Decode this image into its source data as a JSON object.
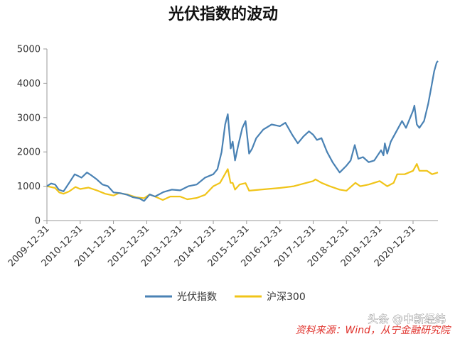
{
  "chart_data": {
    "type": "line",
    "title": "光伏指数的波动",
    "ylim": [
      0,
      5000
    ],
    "yticks": [
      "0",
      "1000",
      "2000",
      "3000",
      "4000",
      "5000"
    ],
    "xlim": [
      "2009-12-31",
      "2021-09-30"
    ],
    "xticks": [
      "2009-12-31",
      "2010-12-31",
      "2011-12-31",
      "2012-12-31",
      "2013-12-31",
      "2014-12-31",
      "2015-12-31",
      "2016-12-31",
      "2017-12-31",
      "2018-12-31",
      "2019-12-31",
      "2020-12-31"
    ],
    "grid": false,
    "legend_position": "bottom",
    "series": [
      {
        "name": "光伏指数",
        "color": "#4a82b4",
        "points": [
          [
            "2009-12-31",
            1000
          ],
          [
            "2010-02-15",
            1080
          ],
          [
            "2010-03-31",
            1050
          ],
          [
            "2010-05-10",
            900
          ],
          [
            "2010-07-01",
            850
          ],
          [
            "2010-09-01",
            1100
          ],
          [
            "2010-11-01",
            1350
          ],
          [
            "2011-01-15",
            1250
          ],
          [
            "2011-03-15",
            1400
          ],
          [
            "2011-05-01",
            1320
          ],
          [
            "2011-07-01",
            1200
          ],
          [
            "2011-09-01",
            1050
          ],
          [
            "2011-11-01",
            1000
          ],
          [
            "2012-01-01",
            820
          ],
          [
            "2012-03-15",
            800
          ],
          [
            "2012-06-01",
            750
          ],
          [
            "2012-08-01",
            680
          ],
          [
            "2012-10-15",
            640
          ],
          [
            "2012-12-01",
            570
          ],
          [
            "2013-02-01",
            760
          ],
          [
            "2013-04-01",
            700
          ],
          [
            "2013-07-01",
            830
          ],
          [
            "2013-10-01",
            900
          ],
          [
            "2014-01-01",
            880
          ],
          [
            "2014-04-01",
            1000
          ],
          [
            "2014-07-01",
            1050
          ],
          [
            "2014-10-01",
            1250
          ],
          [
            "2014-12-31",
            1350
          ],
          [
            "2015-02-15",
            1500
          ],
          [
            "2015-04-01",
            2000
          ],
          [
            "2015-05-10",
            2800
          ],
          [
            "2015-06-08",
            3100
          ],
          [
            "2015-07-10",
            2100
          ],
          [
            "2015-08-01",
            2300
          ],
          [
            "2015-08-26",
            1750
          ],
          [
            "2015-10-01",
            2200
          ],
          [
            "2015-11-15",
            2700
          ],
          [
            "2015-12-20",
            2900
          ],
          [
            "2016-01-28",
            1950
          ],
          [
            "2016-03-01",
            2100
          ],
          [
            "2016-04-15",
            2400
          ],
          [
            "2016-07-01",
            2650
          ],
          [
            "2016-10-01",
            2800
          ],
          [
            "2016-12-31",
            2750
          ],
          [
            "2017-03-01",
            2850
          ],
          [
            "2017-05-15",
            2500
          ],
          [
            "2017-07-15",
            2250
          ],
          [
            "2017-09-15",
            2450
          ],
          [
            "2017-11-15",
            2600
          ],
          [
            "2017-12-31",
            2500
          ],
          [
            "2018-02-10",
            2350
          ],
          [
            "2018-04-01",
            2400
          ],
          [
            "2018-06-01",
            2000
          ],
          [
            "2018-08-01",
            1700
          ],
          [
            "2018-10-18",
            1400
          ],
          [
            "2018-12-31",
            1600
          ],
          [
            "2019-02-15",
            1750
          ],
          [
            "2019-04-01",
            2200
          ],
          [
            "2019-05-10",
            1800
          ],
          [
            "2019-07-01",
            1850
          ],
          [
            "2019-09-01",
            1700
          ],
          [
            "2019-11-01",
            1750
          ],
          [
            "2020-01-15",
            2050
          ],
          [
            "2020-02-10",
            1900
          ],
          [
            "2020-02-25",
            2250
          ],
          [
            "2020-03-23",
            1950
          ],
          [
            "2020-05-01",
            2300
          ],
          [
            "2020-07-01",
            2600
          ],
          [
            "2020-09-01",
            2900
          ],
          [
            "2020-10-15",
            2700
          ],
          [
            "2020-11-15",
            2900
          ],
          [
            "2020-12-31",
            3200
          ],
          [
            "2021-01-15",
            3350
          ],
          [
            "2021-02-10",
            2800
          ],
          [
            "2021-03-10",
            2700
          ],
          [
            "2021-05-01",
            2900
          ],
          [
            "2021-06-15",
            3400
          ],
          [
            "2021-07-20",
            3900
          ],
          [
            "2021-08-20",
            4350
          ],
          [
            "2021-09-15",
            4600
          ],
          [
            "2021-09-30",
            4650
          ]
        ]
      },
      {
        "name": "沪深300",
        "color": "#f0c419",
        "points": [
          [
            "2009-12-31",
            1000
          ],
          [
            "2010-03-31",
            950
          ],
          [
            "2010-05-15",
            820
          ],
          [
            "2010-07-01",
            780
          ],
          [
            "2010-09-01",
            850
          ],
          [
            "2010-11-10",
            980
          ],
          [
            "2010-12-31",
            920
          ],
          [
            "2011-04-01",
            960
          ],
          [
            "2011-07-01",
            880
          ],
          [
            "2011-10-01",
            780
          ],
          [
            "2011-12-31",
            730
          ],
          [
            "2012-03-01",
            800
          ],
          [
            "2012-06-01",
            760
          ],
          [
            "2012-09-01",
            680
          ],
          [
            "2012-12-01",
            650
          ],
          [
            "2013-02-01",
            760
          ],
          [
            "2013-04-01",
            700
          ],
          [
            "2013-06-25",
            600
          ],
          [
            "2013-09-15",
            700
          ],
          [
            "2013-12-31",
            700
          ],
          [
            "2014-03-20",
            620
          ],
          [
            "2014-07-01",
            660
          ],
          [
            "2014-10-01",
            750
          ],
          [
            "2014-12-31",
            1000
          ],
          [
            "2015-03-15",
            1100
          ],
          [
            "2015-06-08",
            1500
          ],
          [
            "2015-07-08",
            1100
          ],
          [
            "2015-08-01",
            1100
          ],
          [
            "2015-08-26",
            900
          ],
          [
            "2015-10-15",
            1050
          ],
          [
            "2015-12-20",
            1090
          ],
          [
            "2016-01-28",
            870
          ],
          [
            "2016-06-01",
            900
          ],
          [
            "2016-12-31",
            950
          ],
          [
            "2017-06-01",
            1000
          ],
          [
            "2017-12-31",
            1150
          ],
          [
            "2018-01-25",
            1200
          ],
          [
            "2018-04-01",
            1100
          ],
          [
            "2018-07-01",
            1000
          ],
          [
            "2018-10-18",
            900
          ],
          [
            "2018-12-31",
            870
          ],
          [
            "2019-04-08",
            1100
          ],
          [
            "2019-06-01",
            1000
          ],
          [
            "2019-09-01",
            1050
          ],
          [
            "2019-12-31",
            1150
          ],
          [
            "2020-03-23",
            1000
          ],
          [
            "2020-06-01",
            1100
          ],
          [
            "2020-07-10",
            1350
          ],
          [
            "2020-10-01",
            1350
          ],
          [
            "2020-12-31",
            1450
          ],
          [
            "2021-02-10",
            1650
          ],
          [
            "2021-03-10",
            1450
          ],
          [
            "2021-06-01",
            1450
          ],
          [
            "2021-07-28",
            1350
          ],
          [
            "2021-09-30",
            1400
          ]
        ]
      }
    ]
  },
  "source_text": "资料来源：Wind，从宁金融研究院",
  "watermark_text": "头条 @中新经纬"
}
